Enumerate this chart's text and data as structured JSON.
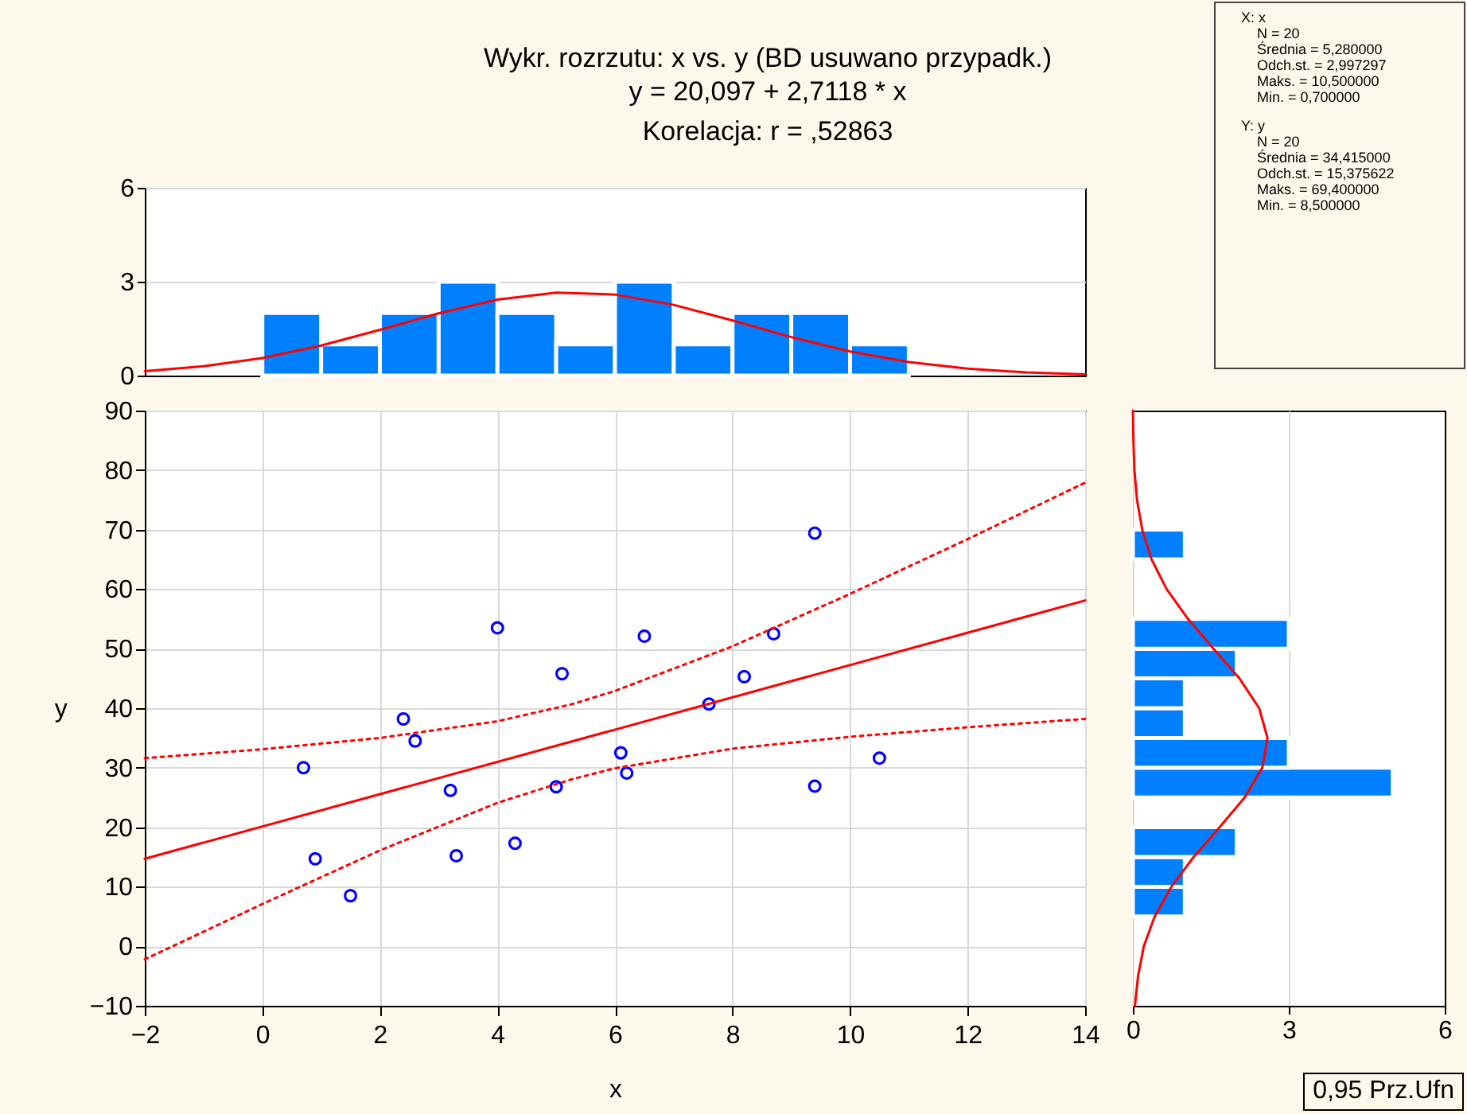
{
  "chart_data": [
    {
      "type": "histogram",
      "title": "Wykr. rozrzutu: x vs. y (BD usuwano przypadk.)",
      "subtitle": "y = 20,097 + 2,7118 * x\nKorelacja: r = ,52863",
      "bins": [
        0,
        1,
        2,
        3,
        4,
        5,
        6,
        7,
        8,
        9,
        10,
        11
      ],
      "values": [
        2,
        1,
        2,
        3,
        2,
        1,
        3,
        1,
        2,
        2,
        1
      ],
      "color": "#0080ff",
      "xlim": [
        -2,
        14
      ],
      "ylim": [
        0,
        6
      ],
      "yticks": [
        0,
        3,
        6
      ],
      "grid": "y",
      "tick_labels": "y",
      "series": [
        {
          "type": "line",
          "color": "#ff0000",
          "x": [
            -2,
            -1,
            0,
            1,
            2,
            3,
            4,
            5,
            6,
            7,
            8,
            9,
            10,
            11,
            12,
            13,
            14
          ],
          "values": [
            0.14,
            0.3,
            0.56,
            0.96,
            1.46,
            1.99,
            2.43,
            2.65,
            2.59,
            2.26,
            1.76,
            1.23,
            0.77,
            0.43,
            0.22,
            0.1,
            0.04
          ]
        }
      ]
    },
    {
      "type": "other",
      "annotations": [
        "X: x\nN = 20\nŚrednia = 5,280000\nOdch.st. = 2,997297\nMaks. = 10,500000\nMin. = 0,700000",
        "Y: y\nN = 20\nŚrednia = 34,415000\nOdch.st. = 15,375622\nMaks. = 69,400000\nMin. = 8,500000"
      ]
    },
    {
      "type": "scatter",
      "xlabel": "x",
      "ylabel": "y",
      "xlim": [
        -2,
        14
      ],
      "ylim": [
        -10,
        90
      ],
      "xticks": [
        -2,
        0,
        2,
        4,
        6,
        8,
        10,
        12,
        14
      ],
      "yticks": [
        -10,
        0,
        10,
        20,
        30,
        40,
        50,
        60,
        70,
        80,
        90
      ],
      "grid": true,
      "annotations": [
        "0,95 Prz.Ufn"
      ],
      "series": [
        {
          "type": "scatter",
          "marker": "circle",
          "color": "#0000ff",
          "x": [
            0.7,
            0.9,
            1.5,
            2.4,
            2.6,
            3.2,
            3.3,
            4.0,
            4.3,
            5.0,
            5.1,
            6.1,
            6.2,
            6.5,
            7.6,
            8.2,
            8.7,
            9.4,
            9.4,
            10.5
          ],
          "values": [
            30.0,
            14.7,
            8.5,
            38.2,
            34.5,
            26.2,
            15.2,
            53.5,
            17.3,
            26.8,
            45.8,
            32.5,
            29.1,
            52.1,
            40.7,
            45.3,
            52.5,
            69.4,
            26.9,
            31.6
          ]
        },
        {
          "type": "line",
          "color": "#ff0000",
          "line_style": "solid",
          "x": [
            -2,
            14
          ],
          "values": [
            14.7,
            58.1
          ]
        },
        {
          "type": "line",
          "color": "#ff0000",
          "line_style": "dotted",
          "x": [
            -2,
            0,
            2,
            4,
            5.28,
            6,
            8,
            10,
            12,
            14
          ],
          "values": [
            31.6,
            33.1,
            35.0,
            37.8,
            40.7,
            42.9,
            50.4,
            59.2,
            68.4,
            77.9
          ]
        },
        {
          "type": "line",
          "color": "#ff0000",
          "line_style": "dotted",
          "x": [
            -2,
            0,
            2,
            4,
            5.28,
            6,
            8,
            10,
            12,
            14
          ],
          "values": [
            -2.2,
            7.1,
            16.1,
            24.1,
            28.1,
            29.9,
            33.2,
            35.2,
            36.8,
            38.2
          ]
        }
      ]
    },
    {
      "type": "histogram",
      "orientation": "horizontal",
      "bins": [
        5,
        10,
        15,
        20,
        25,
        30,
        35,
        40,
        45,
        50,
        55,
        60,
        65,
        70
      ],
      "values": [
        1,
        1,
        2,
        0,
        5,
        3,
        1,
        1,
        2,
        3,
        0,
        0,
        1
      ],
      "color": "#0080ff",
      "xlim": [
        0,
        6
      ],
      "xticks": [
        0,
        3,
        6
      ],
      "ylim": [
        -10,
        90
      ],
      "grid": "x",
      "tick_labels": "x",
      "series": [
        {
          "type": "line",
          "color": "#ff0000",
          "x": [
            -10,
            -5,
            0,
            5,
            10,
            15,
            20,
            25,
            30,
            35,
            40,
            45,
            50,
            55,
            60,
            65,
            70,
            75,
            80,
            85,
            90
          ],
          "values": [
            0.04,
            0.1,
            0.21,
            0.42,
            0.74,
            1.17,
            1.67,
            2.15,
            2.49,
            2.59,
            2.43,
            2.05,
            1.55,
            1.06,
            0.65,
            0.36,
            0.18,
            0.08,
            0.03,
            0.01,
            0.0
          ]
        }
      ]
    }
  ]
}
